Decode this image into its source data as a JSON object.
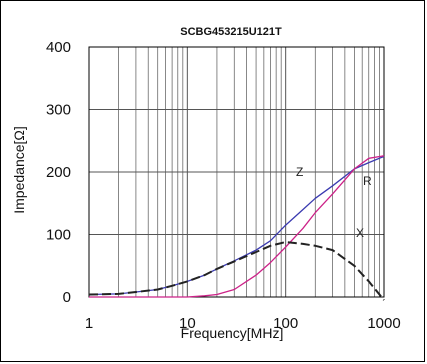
{
  "chart_data": {
    "type": "line",
    "title": "SCBG453215U121T",
    "xlabel": "Frequency[MHz]",
    "ylabel": "Impedance[Ω]",
    "x_scale": "log",
    "xlim": [
      1,
      1000
    ],
    "ylim": [
      0,
      400
    ],
    "x_ticks": [
      "1",
      "10",
      "100",
      "1000"
    ],
    "y_ticks": [
      "0",
      "100",
      "200",
      "300",
      "400"
    ],
    "grid": true,
    "series": [
      {
        "name": "Z",
        "color": "#3a3ab0",
        "style": "solid",
        "x": [
          1,
          2,
          3,
          5,
          7,
          10,
          15,
          20,
          30,
          50,
          70,
          100,
          150,
          200,
          300,
          500,
          700,
          1000
        ],
        "y": [
          4,
          5,
          8,
          12,
          18,
          25,
          35,
          45,
          58,
          75,
          90,
          115,
          140,
          158,
          178,
          205,
          215,
          225
        ]
      },
      {
        "name": "R",
        "color": "#cc2288",
        "style": "solid",
        "x": [
          1,
          2,
          5,
          10,
          15,
          20,
          30,
          50,
          70,
          100,
          150,
          200,
          300,
          500,
          700,
          1000
        ],
        "y": [
          0,
          0,
          0,
          0,
          2,
          4,
          12,
          35,
          55,
          80,
          110,
          135,
          165,
          205,
          222,
          226
        ]
      },
      {
        "name": "X",
        "color": "#222222",
        "style": "dashed",
        "x": [
          1,
          2,
          3,
          5,
          7,
          10,
          15,
          20,
          30,
          50,
          70,
          100,
          150,
          200,
          300,
          500,
          700,
          1000
        ],
        "y": [
          4,
          5,
          8,
          12,
          18,
          25,
          35,
          45,
          57,
          72,
          82,
          88,
          85,
          82,
          75,
          50,
          25,
          -5
        ]
      }
    ]
  }
}
